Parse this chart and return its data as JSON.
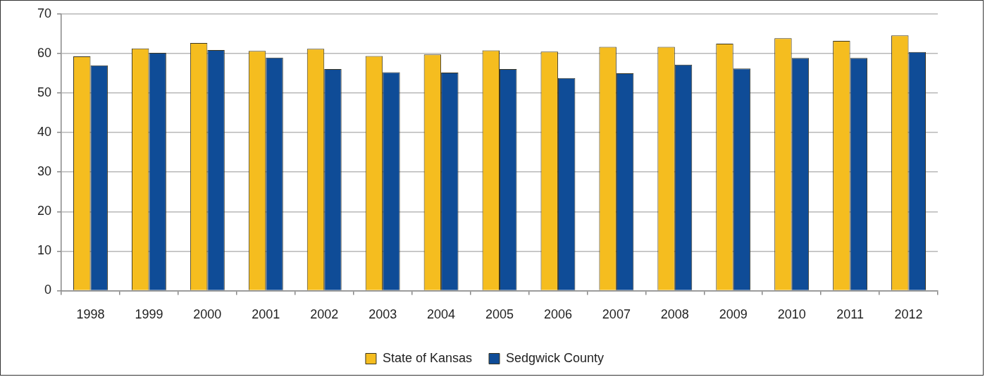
{
  "chart_data": {
    "type": "bar",
    "categories": [
      "1998",
      "1999",
      "2000",
      "2001",
      "2002",
      "2003",
      "2004",
      "2005",
      "2006",
      "2007",
      "2008",
      "2009",
      "2010",
      "2011",
      "2012"
    ],
    "series": [
      {
        "name": "State of Kansas",
        "color": "#f5bd1f",
        "values": [
          59.3,
          61.3,
          62.7,
          60.7,
          61.2,
          59.4,
          59.8,
          60.8,
          60.5,
          61.7,
          61.7,
          62.5,
          63.9,
          63.2,
          64.6
        ]
      },
      {
        "name": "Sedgwick County",
        "color": "#0f4c97",
        "values": [
          57.0,
          60.2,
          60.9,
          59.0,
          56.1,
          55.3,
          55.2,
          56.1,
          53.8,
          55.0,
          57.2,
          56.2,
          58.9,
          58.9,
          60.4
        ]
      }
    ],
    "ylim": [
      0,
      70
    ],
    "yticks": [
      0,
      10,
      20,
      30,
      40,
      50,
      60,
      70
    ],
    "grid": "y",
    "legend": "bottom"
  }
}
